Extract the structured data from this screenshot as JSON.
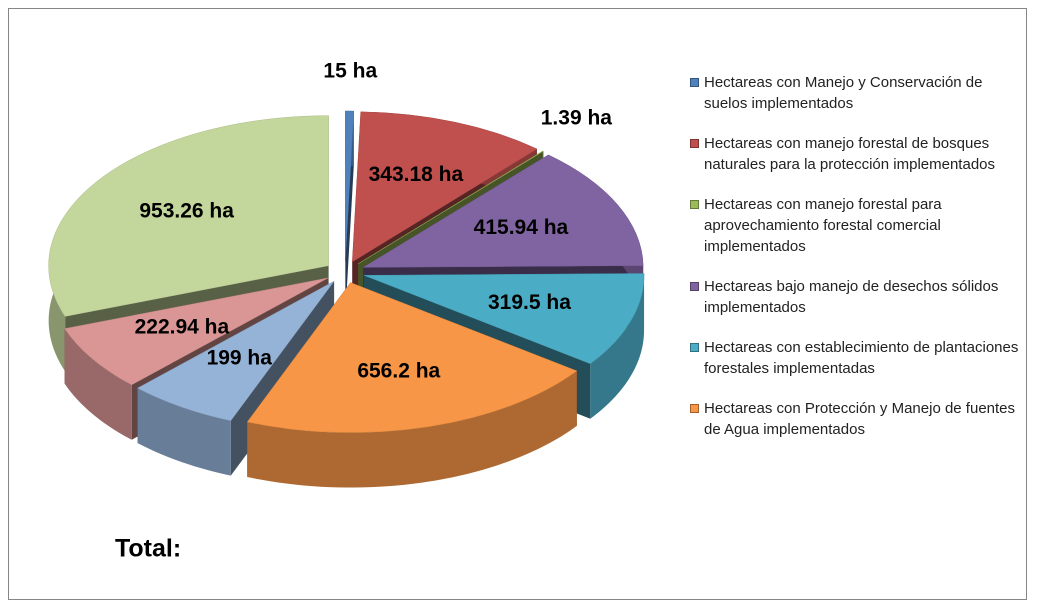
{
  "chart_data": {
    "type": "pie",
    "categories": [
      "Hectareas con Manejo y Conservación de suelos implementados",
      "Hectareas con manejo forestal de bosques  naturales  para la protección implementados",
      "Hectareas con manejo forestal  para aprovechamiento forestal comercial implementados",
      "Hectareas bajo manejo de desechos sólidos  implementados",
      "Hectareas con establecimiento de plantaciones forestales implementadas",
      "Hectareas con  Protección y  Manejo de fuentes de  Agua implementados",
      null,
      null,
      null
    ],
    "values": [
      15,
      343.18,
      1.39,
      415.94,
      319.5,
      656.2,
      199,
      222.94,
      953.26
    ],
    "value_labels": [
      "15 ha",
      "343.18 ha",
      "1.39 ha",
      "415.94 ha",
      "319.5 ha",
      "656.2 ha",
      "199 ha",
      "222.94 ha",
      "953.26 ha"
    ],
    "colors": [
      "#4f81bd",
      "#c0504d",
      "#9bbb59",
      "#8064a2",
      "#4bacc6",
      "#f79646",
      "#95b3d7",
      "#d99694",
      "#c3d69b"
    ],
    "annotations": [
      "Total:"
    ]
  }
}
